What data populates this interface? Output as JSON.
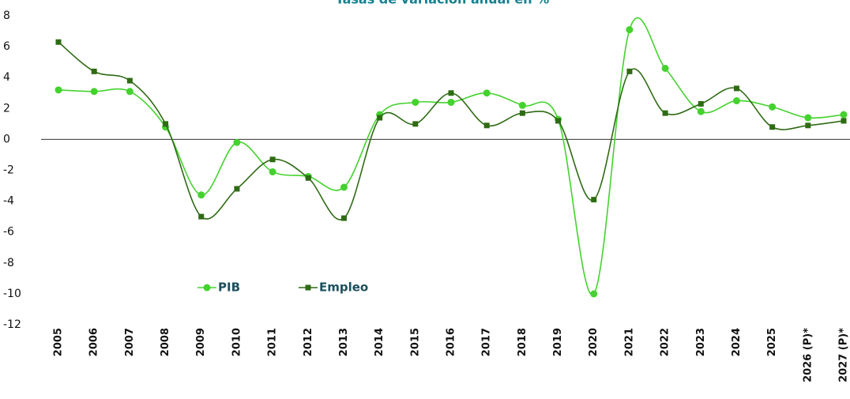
{
  "chart_data": {
    "type": "line",
    "title": "Tasas de variación anual en %",
    "categories": [
      "2005",
      "2006",
      "2007",
      "2008",
      "2009",
      "2010",
      "2011",
      "2012",
      "2013",
      "2014",
      "2015",
      "2016",
      "2017",
      "2018",
      "2019",
      "2020",
      "2021",
      "2022",
      "2023",
      "2024",
      "2025",
      "2026 (P)*",
      "2027 (P)*"
    ],
    "series": [
      {
        "name": "PIB",
        "color": "#44d22e",
        "marker": "circle",
        "values": [
          3.2,
          3.1,
          3.1,
          0.8,
          -3.6,
          -0.2,
          -2.1,
          -2.4,
          -3.1,
          1.6,
          2.4,
          2.4,
          3.0,
          2.2,
          1.3,
          -10.0,
          7.1,
          4.6,
          1.8,
          2.5,
          2.1,
          1.4,
          1.6
        ]
      },
      {
        "name": "Empleo",
        "color": "#2f6b14",
        "marker": "square",
        "values": [
          6.3,
          4.4,
          3.8,
          1.0,
          -5.0,
          -3.2,
          -1.3,
          -2.5,
          -5.1,
          1.4,
          1.0,
          3.0,
          0.9,
          1.7,
          1.2,
          -3.9,
          4.4,
          1.7,
          2.3,
          3.3,
          0.8,
          0.9,
          1.2
        ]
      }
    ],
    "ylim": [
      -12,
      8
    ],
    "yticks": [
      -12,
      -10,
      -8,
      -6,
      -4,
      -2,
      0,
      2,
      4,
      6,
      8
    ],
    "smooth": true,
    "grid": false
  }
}
